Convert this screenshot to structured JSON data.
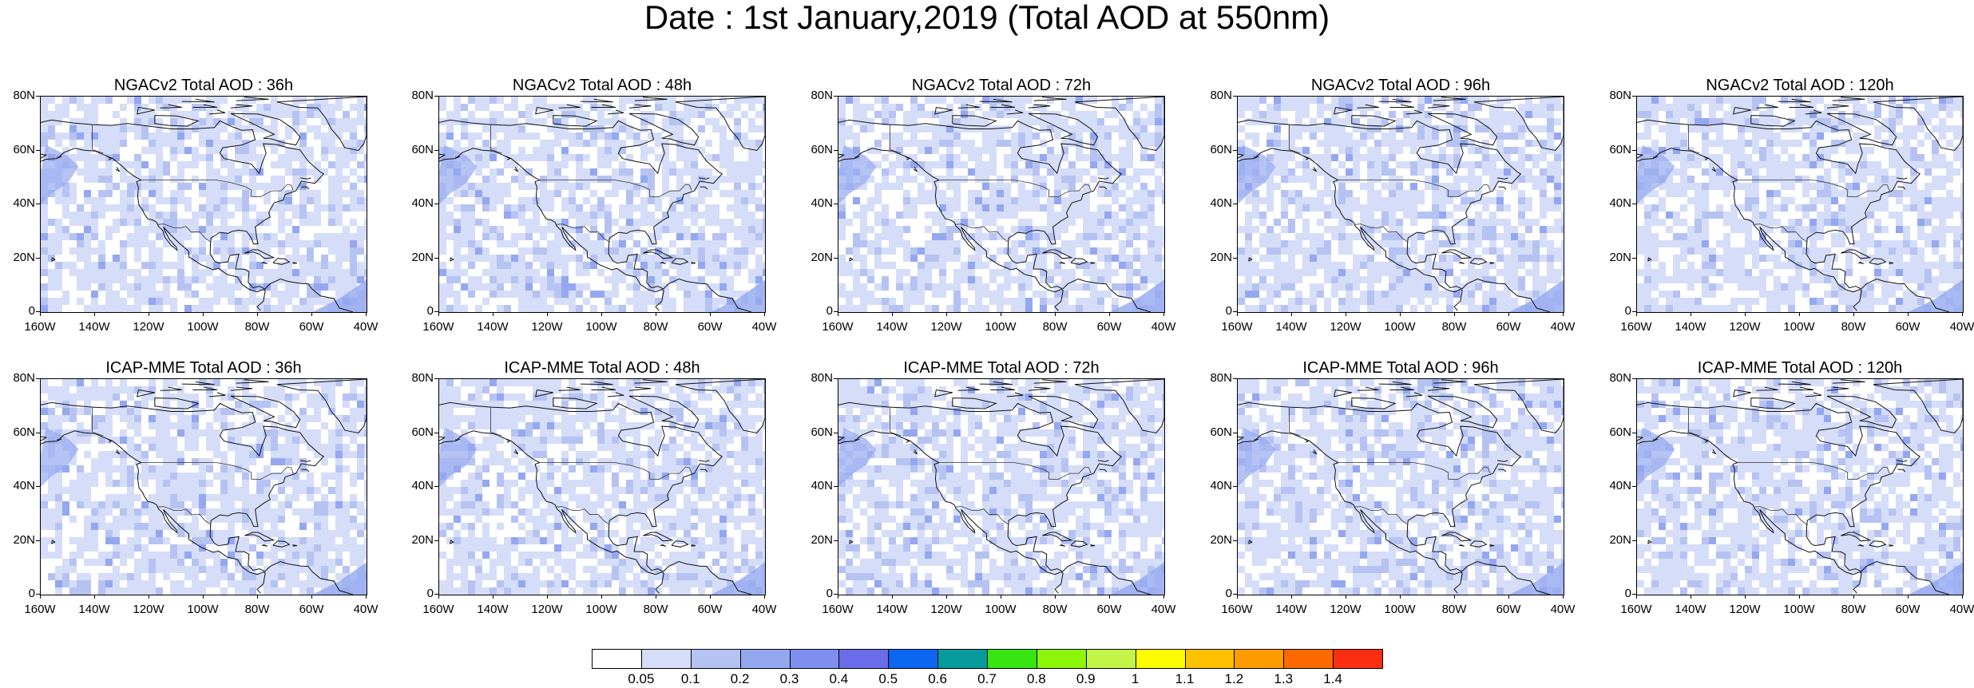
{
  "title": "Date : 1st January,2019 (Total AOD at 550nm)",
  "x_tick_labels": [
    "160W",
    "140W",
    "120W",
    "100W",
    "80W",
    "60W",
    "40W"
  ],
  "y_tick_labels": [
    "80N",
    "60N",
    "40N",
    "20N",
    "0"
  ],
  "panels": [
    {
      "title": "NGACv2 Total AOD : 36h",
      "model": "NGACv2",
      "forecast_hour": 36
    },
    {
      "title": "NGACv2 Total AOD : 48h",
      "model": "NGACv2",
      "forecast_hour": 48
    },
    {
      "title": "NGACv2 Total AOD : 72h",
      "model": "NGACv2",
      "forecast_hour": 72
    },
    {
      "title": "NGACv2 Total AOD : 96h",
      "model": "NGACv2",
      "forecast_hour": 96
    },
    {
      "title": "NGACv2 Total AOD : 120h",
      "model": "NGACv2",
      "forecast_hour": 120
    },
    {
      "title": "ICAP-MME Total AOD : 36h",
      "model": "ICAP-MME",
      "forecast_hour": 36
    },
    {
      "title": "ICAP-MME Total AOD : 48h",
      "model": "ICAP-MME",
      "forecast_hour": 48
    },
    {
      "title": "ICAP-MME Total AOD : 72h",
      "model": "ICAP-MME",
      "forecast_hour": 72
    },
    {
      "title": "ICAP-MME Total AOD : 96h",
      "model": "ICAP-MME",
      "forecast_hour": 96
    },
    {
      "title": "ICAP-MME Total AOD : 120h",
      "model": "ICAP-MME",
      "forecast_hour": 120
    }
  ],
  "colorbar": {
    "labels": [
      "0.05",
      "0.1",
      "0.2",
      "0.3",
      "0.4",
      "0.5",
      "0.6",
      "0.7",
      "0.8",
      "0.9",
      "1",
      "1.1",
      "1.2",
      "1.3",
      "1.4"
    ],
    "colors": [
      "#ffffff",
      "#d6ddf8",
      "#b6c3f2",
      "#94a8f0",
      "#7e8ff0",
      "#6a6cea",
      "#0b66f2",
      "#079b9b",
      "#37e510",
      "#8bf50a",
      "#c2f548",
      "#fdfd00",
      "#fdc100",
      "#fe9b00",
      "#fb6a00",
      "#fb2e12"
    ]
  },
  "map": {
    "ocean_color": "#e6edfc",
    "land_color": "#f7f9ff",
    "coast_color": "#111111"
  }
}
